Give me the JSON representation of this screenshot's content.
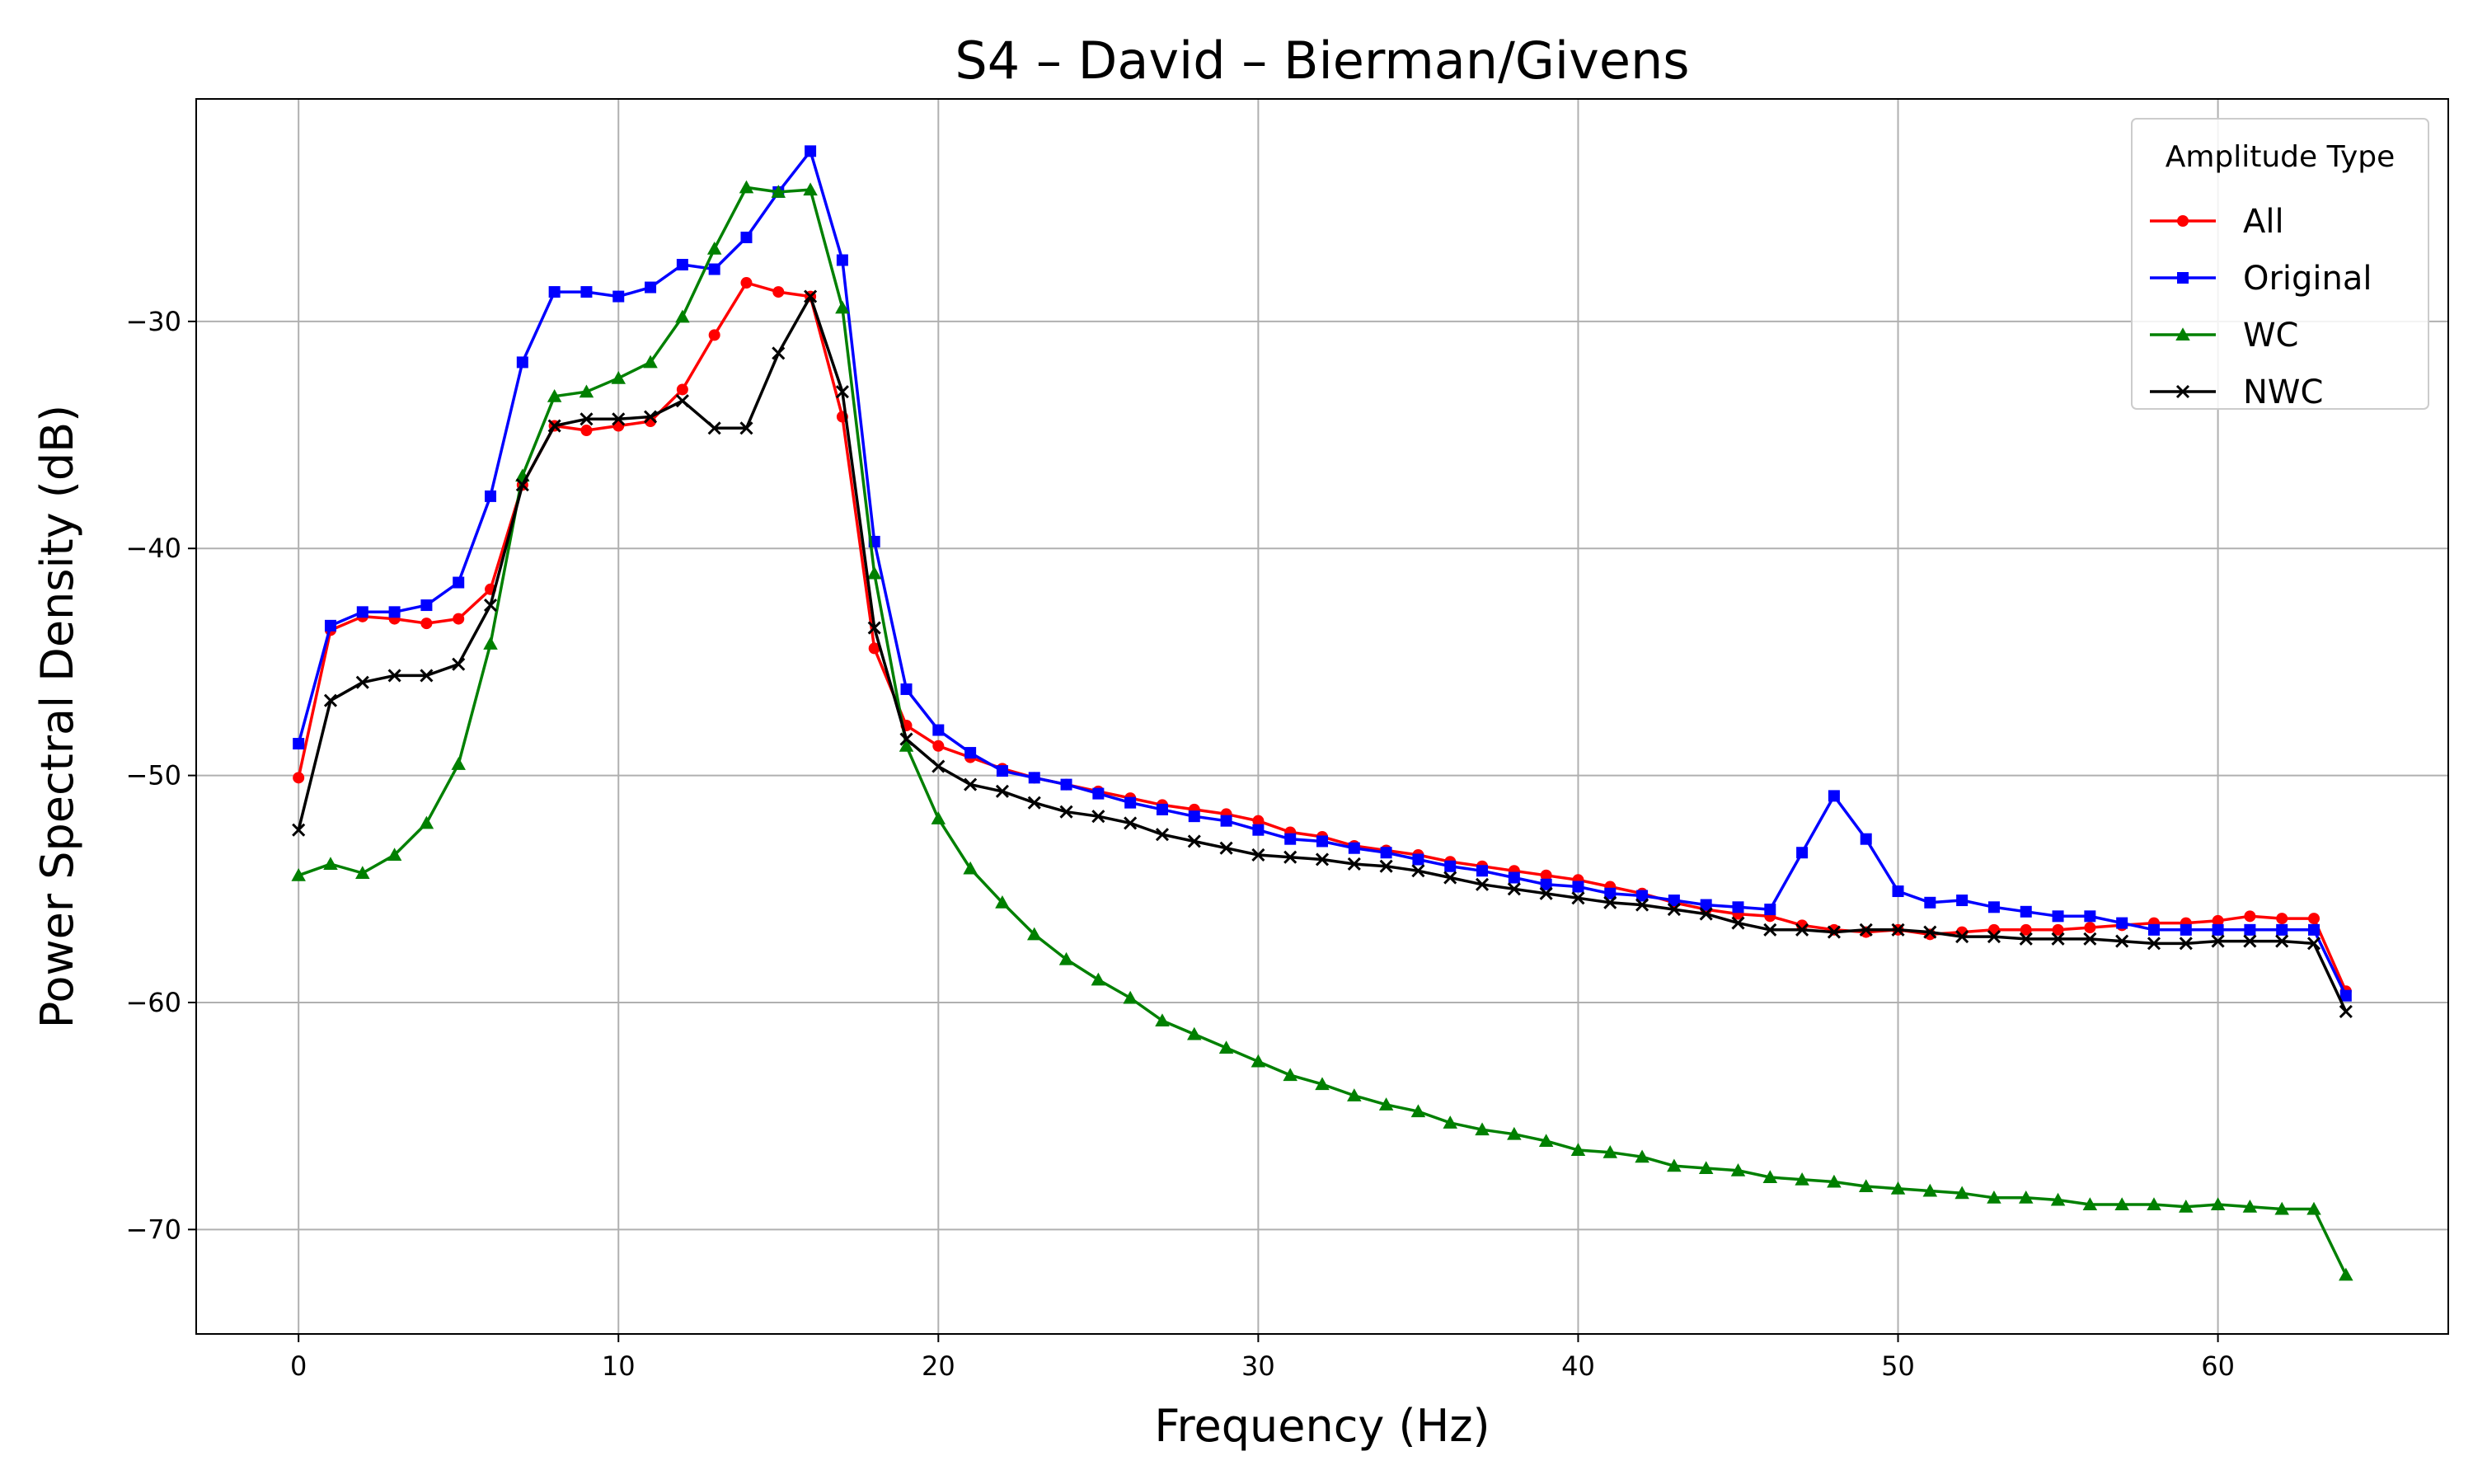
{
  "chart_data": {
    "type": "line",
    "title": "S4 – David – Bierman/Givens",
    "xlabel": "Frequency (Hz)",
    "ylabel": "Power Spectral Density (dB)",
    "xlim": [
      -3.2,
      67.2
    ],
    "ylim": [
      -74.6,
      -20.2
    ],
    "xticks": [
      0,
      10,
      20,
      30,
      40,
      50,
      60
    ],
    "yticks": [
      -70,
      -60,
      -50,
      -40,
      -30
    ],
    "grid": true,
    "legend": {
      "title": "Amplitude Type",
      "placement": "top-right"
    },
    "x": [
      0,
      1,
      2,
      3,
      4,
      5,
      6,
      7,
      8,
      9,
      10,
      11,
      12,
      13,
      14,
      15,
      16,
      17,
      18,
      19,
      20,
      21,
      22,
      23,
      24,
      25,
      26,
      27,
      28,
      29,
      30,
      31,
      32,
      33,
      34,
      35,
      36,
      37,
      38,
      39,
      40,
      41,
      42,
      43,
      44,
      45,
      46,
      47,
      48,
      49,
      50,
      51,
      52,
      53,
      54,
      55,
      56,
      57,
      58,
      59,
      60,
      61,
      62,
      63,
      64
    ],
    "series": [
      {
        "name": "All",
        "color": "#ff0000",
        "marker": "circle",
        "values": [
          -50.1,
          -43.6,
          -43.0,
          -43.1,
          -43.3,
          -43.1,
          -41.8,
          -37.2,
          -34.6,
          -34.8,
          -34.6,
          -34.4,
          -33.0,
          -30.6,
          -28.3,
          -28.7,
          -28.9,
          -34.2,
          -44.4,
          -47.8,
          -48.7,
          -49.2,
          -49.7,
          -50.1,
          -50.4,
          -50.7,
          -51.0,
          -51.3,
          -51.5,
          -51.7,
          -52.0,
          -52.5,
          -52.7,
          -53.1,
          -53.3,
          -53.5,
          -53.8,
          -54.0,
          -54.2,
          -54.4,
          -54.6,
          -54.9,
          -55.2,
          -55.6,
          -55.9,
          -56.1,
          -56.2,
          -56.6,
          -56.8,
          -56.9,
          -56.8,
          -57.0,
          -56.9,
          -56.8,
          -56.8,
          -56.8,
          -56.7,
          -56.6,
          -56.5,
          -56.5,
          -56.4,
          -56.2,
          -56.3,
          -56.3,
          -59.5
        ]
      },
      {
        "name": "Original",
        "color": "#0000ff",
        "marker": "square",
        "values": [
          -48.6,
          -43.4,
          -42.8,
          -42.8,
          -42.5,
          -41.5,
          -37.7,
          -31.8,
          -28.7,
          -28.7,
          -28.9,
          -28.5,
          -27.5,
          -27.7,
          -26.3,
          -24.3,
          -22.5,
          -27.3,
          -39.7,
          -46.2,
          -48.0,
          -49.0,
          -49.8,
          -50.1,
          -50.4,
          -50.8,
          -51.2,
          -51.5,
          -51.8,
          -52.0,
          -52.4,
          -52.8,
          -52.9,
          -53.2,
          -53.4,
          -53.7,
          -54.0,
          -54.2,
          -54.5,
          -54.8,
          -54.9,
          -55.2,
          -55.3,
          -55.5,
          -55.7,
          -55.8,
          -55.9,
          -53.4,
          -50.9,
          -52.8,
          -55.1,
          -55.6,
          -55.5,
          -55.8,
          -56.0,
          -56.2,
          -56.2,
          -56.5,
          -56.8,
          -56.8,
          -56.8,
          -56.8,
          -56.8,
          -56.8,
          -59.7
        ]
      },
      {
        "name": "WC",
        "color": "#008000",
        "marker": "triangle",
        "values": [
          -54.4,
          -53.9,
          -54.3,
          -53.5,
          -52.1,
          -49.5,
          -44.2,
          -36.8,
          -33.3,
          -33.1,
          -32.5,
          -31.8,
          -29.8,
          -26.8,
          -24.1,
          -24.3,
          -24.2,
          -29.4,
          -41.1,
          -48.7,
          -51.9,
          -54.1,
          -55.6,
          -57.0,
          -58.1,
          -59.0,
          -59.8,
          -60.8,
          -61.4,
          -62.0,
          -62.6,
          -63.2,
          -63.6,
          -64.1,
          -64.5,
          -64.8,
          -65.3,
          -65.6,
          -65.8,
          -66.1,
          -66.5,
          -66.6,
          -66.8,
          -67.2,
          -67.3,
          -67.4,
          -67.7,
          -67.8,
          -67.9,
          -68.1,
          -68.2,
          -68.3,
          -68.4,
          -68.6,
          -68.6,
          -68.7,
          -68.9,
          -68.9,
          -68.9,
          -69.0,
          -68.9,
          -69.0,
          -69.1,
          -69.1,
          -72.0
        ]
      },
      {
        "name": "NWC",
        "color": "#000000",
        "marker": "x",
        "values": [
          -52.4,
          -46.7,
          -45.9,
          -45.6,
          -45.6,
          -45.1,
          -42.5,
          -37.2,
          -34.6,
          -34.3,
          -34.3,
          -34.2,
          -33.5,
          -34.7,
          -34.7,
          -31.4,
          -28.9,
          -33.1,
          -43.5,
          -48.4,
          -49.6,
          -50.4,
          -50.7,
          -51.2,
          -51.6,
          -51.8,
          -52.1,
          -52.6,
          -52.9,
          -53.2,
          -53.5,
          -53.6,
          -53.7,
          -53.9,
          -54.0,
          -54.2,
          -54.5,
          -54.8,
          -55.0,
          -55.2,
          -55.4,
          -55.6,
          -55.7,
          -55.9,
          -56.1,
          -56.5,
          -56.8,
          -56.8,
          -56.9,
          -56.8,
          -56.8,
          -56.9,
          -57.1,
          -57.1,
          -57.2,
          -57.2,
          -57.2,
          -57.3,
          -57.4,
          -57.4,
          -57.3,
          -57.3,
          -57.3,
          -57.4,
          -60.4
        ]
      }
    ]
  }
}
